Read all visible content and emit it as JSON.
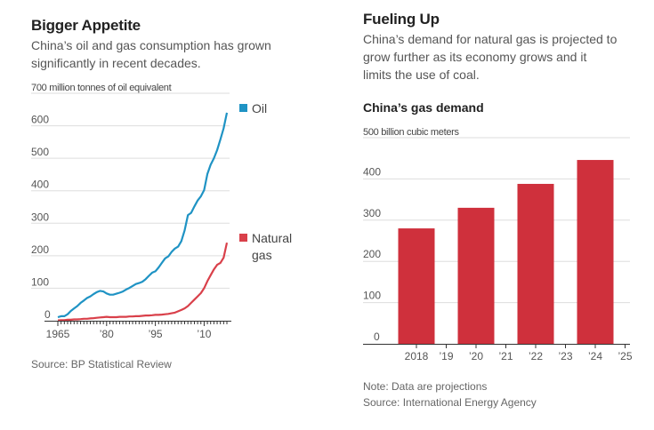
{
  "left_panel": {
    "title": "Bigger Appetite",
    "subtitle_line1": "China’s oil and gas consumption has grown",
    "subtitle_line2": "significantly in recent decades.",
    "source": "Source: BP Statistical Review"
  },
  "right_panel": {
    "title": "Fueling Up",
    "subtitle_line1": "China’s demand for natural gas is projected to",
    "subtitle_line2": "grow further as its economy grows and it",
    "subtitle_line3": "limits the use of coal.",
    "chart_title": "China’s gas demand",
    "note": "Note: Data are projections",
    "source": "Source: International Energy Agency"
  },
  "colors": {
    "oil": "#1f93c4",
    "gas": "#d9404a",
    "bar": "#cf303c",
    "grid": "#dddddd",
    "axis": "#333333",
    "tick_text": "#555555"
  },
  "chart_data": [
    {
      "type": "line",
      "title": "Bigger Appetite",
      "ylabel": "million tonnes of oil equivalent",
      "y_top_label": "700 million tonnes of oil equivalent",
      "ylim": [
        0,
        700
      ],
      "yticks": [
        0,
        100,
        200,
        300,
        400,
        500,
        600
      ],
      "ytick_labels": [
        "0",
        "100",
        "200",
        "300",
        "400",
        "500",
        " 600"
      ],
      "xlim": [
        1965,
        2017
      ],
      "xticks": [
        1965,
        1980,
        1995,
        2010
      ],
      "xtick_labels": [
        "1965",
        "’80",
        "’95",
        "’10"
      ],
      "grid": true,
      "legend": "right",
      "x": [
        1965,
        1966,
        1967,
        1968,
        1969,
        1970,
        1971,
        1972,
        1973,
        1974,
        1975,
        1976,
        1977,
        1978,
        1979,
        1980,
        1981,
        1982,
        1983,
        1984,
        1985,
        1986,
        1987,
        1988,
        1989,
        1990,
        1991,
        1992,
        1993,
        1994,
        1995,
        1996,
        1997,
        1998,
        1999,
        2000,
        2001,
        2002,
        2003,
        2004,
        2005,
        2006,
        2007,
        2008,
        2009,
        2010,
        2011,
        2012,
        2013,
        2014,
        2015,
        2016,
        2017
      ],
      "series": [
        {
          "name": "Oil",
          "values": [
            11,
            14,
            14,
            20,
            30,
            38,
            45,
            55,
            62,
            70,
            75,
            82,
            88,
            92,
            90,
            84,
            80,
            80,
            83,
            86,
            90,
            96,
            101,
            107,
            113,
            116,
            120,
            128,
            138,
            148,
            152,
            164,
            178,
            192,
            198,
            212,
            222,
            228,
            245,
            278,
            325,
            332,
            352,
            370,
            383,
            402,
            452,
            480,
            500,
            525,
            558,
            592,
            640
          ]
        },
        {
          "name": "Natural gas",
          "values": [
            1,
            2,
            2,
            3,
            3,
            4,
            4,
            5,
            6,
            6,
            7,
            8,
            9,
            10,
            11,
            12,
            11,
            11,
            11,
            12,
            12,
            12,
            13,
            13,
            14,
            14,
            15,
            16,
            16,
            17,
            18,
            18,
            19,
            20,
            21,
            23,
            25,
            29,
            33,
            38,
            45,
            55,
            65,
            75,
            85,
            100,
            122,
            140,
            158,
            172,
            178,
            194,
            240
          ]
        }
      ]
    },
    {
      "type": "bar",
      "title": "China’s gas demand",
      "ylabel": "billion cubic meters",
      "y_top_label": "500 billion cubic meters",
      "ylim": [
        0,
        500
      ],
      "yticks": [
        0,
        100,
        200,
        300,
        400
      ],
      "ytick_labels": [
        "0",
        "100",
        "200",
        "300",
        "400"
      ],
      "xtick_labels": [
        "2018",
        "’19",
        "’20",
        "’21",
        "’22",
        "’23",
        "’24",
        "’25"
      ],
      "categories": [
        "2018",
        "2020",
        "2022",
        "2024"
      ],
      "values": [
        280,
        330,
        388,
        446
      ],
      "grid": true,
      "note": "Data are projections"
    }
  ]
}
